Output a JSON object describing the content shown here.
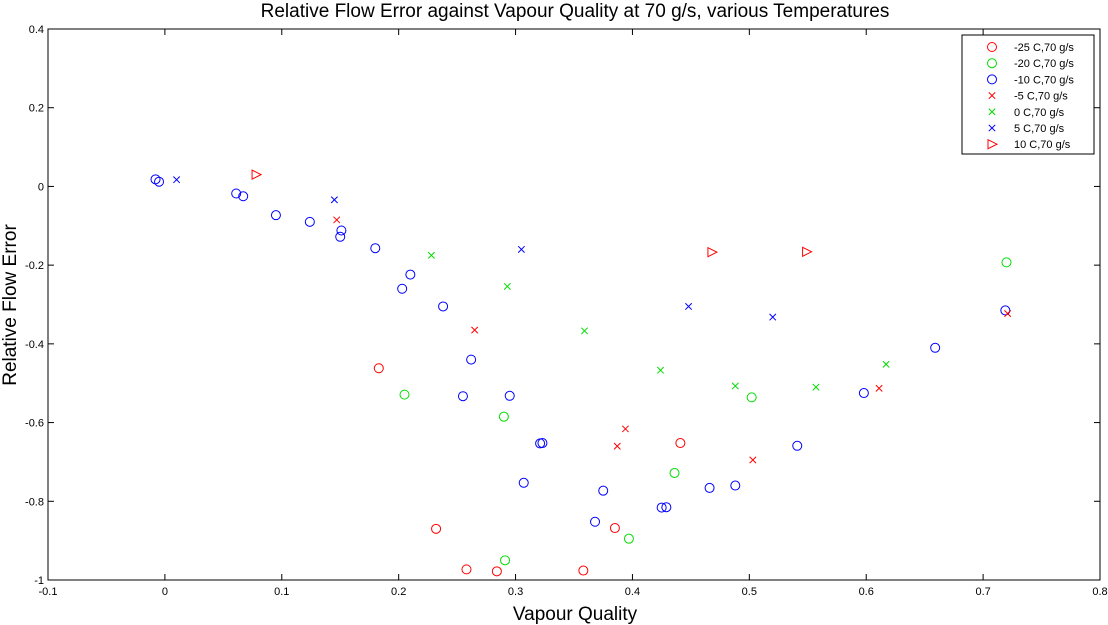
{
  "chart_data": {
    "type": "scatter",
    "title": "Relative Flow Error against Vapour Quality at 70 g/s, various Temperatures",
    "xlabel": "Vapour Quality",
    "ylabel": "Relative Flow Error",
    "xlim": [
      -0.1,
      0.8
    ],
    "ylim": [
      -1,
      0.4
    ],
    "xticks": [
      "-0.1",
      "0",
      "0.1",
      "0.2",
      "0.3",
      "0.4",
      "0.5",
      "0.6",
      "0.7",
      "0.8"
    ],
    "yticks": [
      "-1",
      "-0.8",
      "-0.6",
      "-0.4",
      "-0.2",
      "0",
      "0.2",
      "0.4"
    ],
    "grid": false,
    "legend_position": "top-right",
    "series": [
      {
        "name": "-25 C,70 g/s",
        "color": "#ff0000",
        "marker": "circle",
        "points": [
          [
            0.183,
            -0.462
          ],
          [
            0.232,
            -0.87
          ],
          [
            0.258,
            -0.973
          ],
          [
            0.284,
            -0.978
          ],
          [
            0.358,
            -0.976
          ],
          [
            0.385,
            -0.868
          ],
          [
            0.441,
            -0.652
          ]
        ]
      },
      {
        "name": "-20 C,70 g/s",
        "color": "#00dd00",
        "marker": "circle",
        "points": [
          [
            0.205,
            -0.529
          ],
          [
            0.29,
            -0.585
          ],
          [
            0.291,
            -0.95
          ],
          [
            0.397,
            -0.895
          ],
          [
            0.436,
            -0.728
          ],
          [
            0.502,
            -0.536
          ],
          [
            0.72,
            -0.193
          ]
        ]
      },
      {
        "name": "-10 C,70 g/s",
        "color": "#0000ff",
        "marker": "circle",
        "points": [
          [
            -0.008,
            0.018
          ],
          [
            -0.005,
            0.012
          ],
          [
            0.061,
            -0.018
          ],
          [
            0.067,
            -0.025
          ],
          [
            0.095,
            -0.073
          ],
          [
            0.124,
            -0.09
          ],
          [
            0.151,
            -0.112
          ],
          [
            0.15,
            -0.128
          ],
          [
            0.18,
            -0.157
          ],
          [
            0.21,
            -0.224
          ],
          [
            0.203,
            -0.26
          ],
          [
            0.238,
            -0.305
          ],
          [
            0.262,
            -0.44
          ],
          [
            0.255,
            -0.533
          ],
          [
            0.295,
            -0.532
          ],
          [
            0.307,
            -0.753
          ],
          [
            0.321,
            -0.653
          ],
          [
            0.323,
            -0.652
          ],
          [
            0.368,
            -0.852
          ],
          [
            0.375,
            -0.773
          ],
          [
            0.425,
            -0.816
          ],
          [
            0.429,
            -0.815
          ],
          [
            0.466,
            -0.766
          ],
          [
            0.488,
            -0.76
          ],
          [
            0.541,
            -0.659
          ],
          [
            0.598,
            -0.525
          ],
          [
            0.659,
            -0.41
          ],
          [
            0.719,
            -0.315
          ]
        ]
      },
      {
        "name": "-5 C,70 g/s",
        "color": "#ff0000",
        "marker": "x",
        "points": [
          [
            0.147,
            -0.085
          ],
          [
            0.265,
            -0.365
          ],
          [
            0.387,
            -0.66
          ],
          [
            0.394,
            -0.616
          ],
          [
            0.503,
            -0.695
          ],
          [
            0.611,
            -0.513
          ],
          [
            0.721,
            -0.323
          ]
        ]
      },
      {
        "name": "0 C,70 g/s",
        "color": "#00dd00",
        "marker": "x",
        "points": [
          [
            0.228,
            -0.175
          ],
          [
            0.293,
            -0.254
          ],
          [
            0.359,
            -0.367
          ],
          [
            0.424,
            -0.467
          ],
          [
            0.488,
            -0.507
          ],
          [
            0.557,
            -0.51
          ],
          [
            0.617,
            -0.452
          ]
        ]
      },
      {
        "name": "5 C,70 g/s",
        "color": "#0000ff",
        "marker": "x",
        "points": [
          [
            0.01,
            0.017
          ],
          [
            0.145,
            -0.034
          ],
          [
            0.305,
            -0.16
          ],
          [
            0.448,
            -0.305
          ],
          [
            0.52,
            -0.332
          ]
        ]
      },
      {
        "name": "10 C,70 g/s",
        "color": "#ff0000",
        "marker": "triangle-right",
        "points": [
          [
            0.078,
            0.03
          ],
          [
            0.468,
            -0.167
          ],
          [
            0.549,
            -0.166
          ]
        ]
      }
    ]
  }
}
